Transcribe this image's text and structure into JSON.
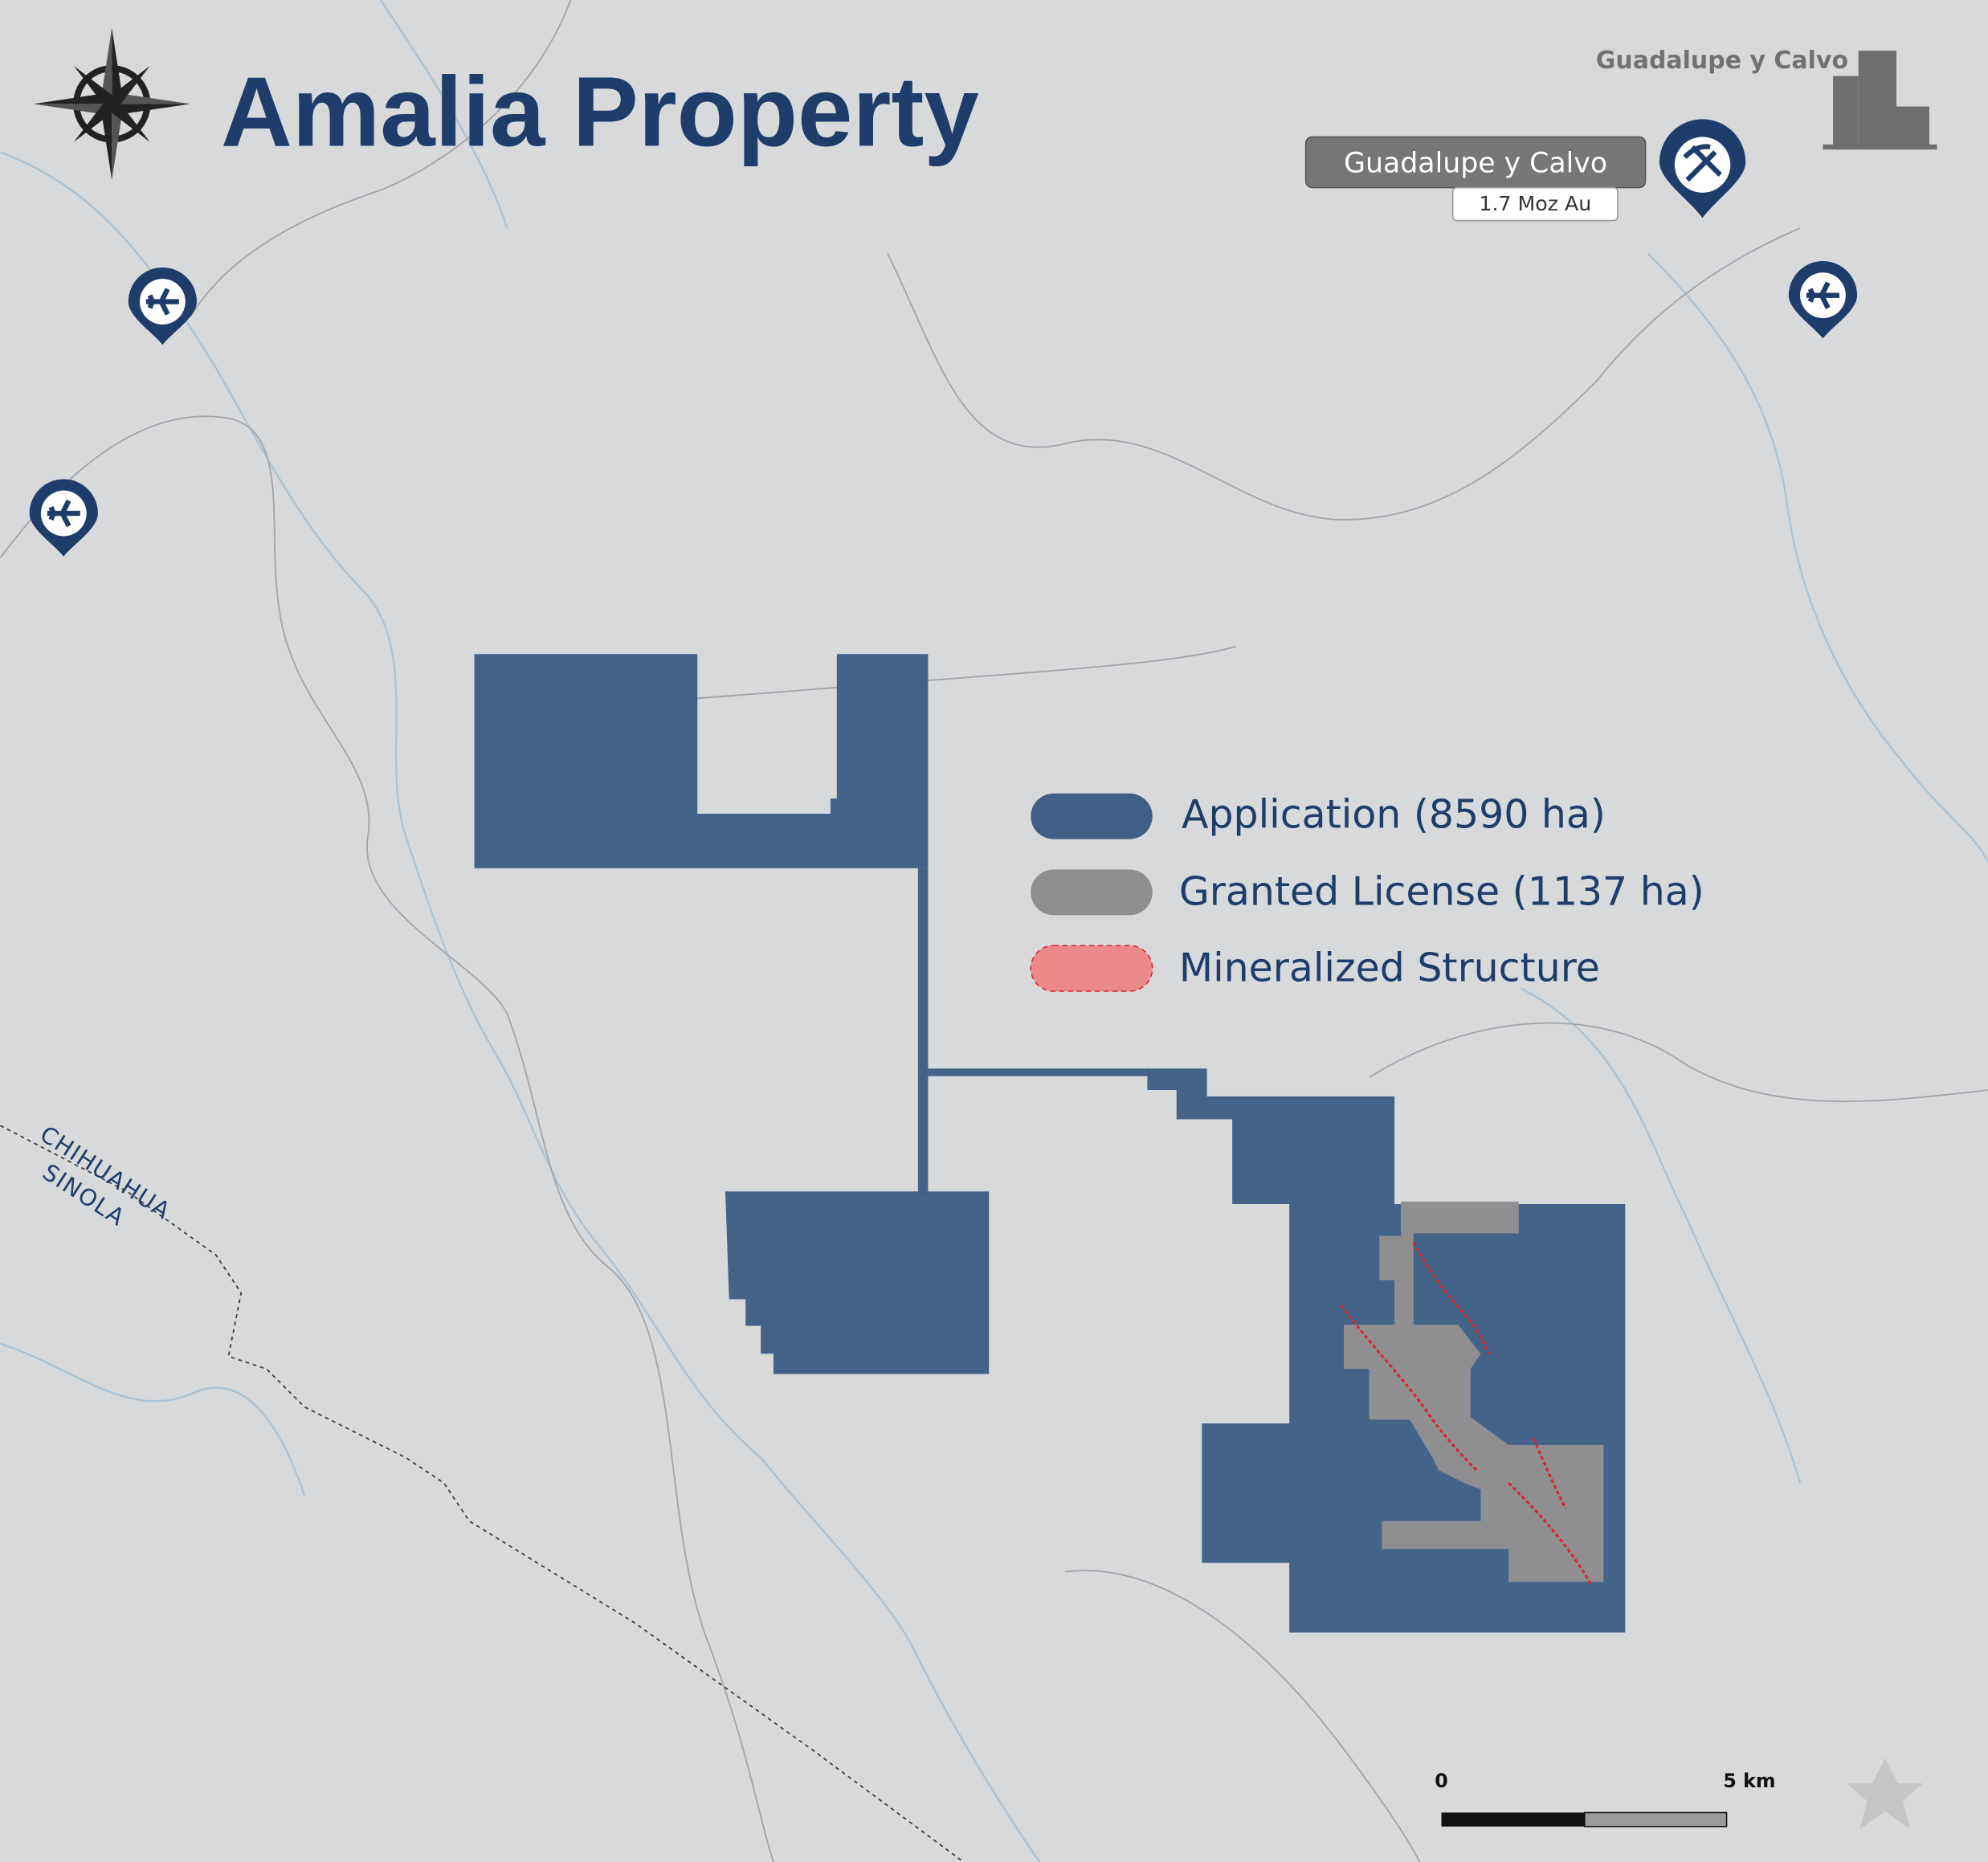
{
  "title": "Amalia Property",
  "city_label": "Guadalupe y Calvo",
  "mine": {
    "name": "Guadalupe y Calvo",
    "resource": "1.7 Moz Au"
  },
  "legend": [
    "Application (8590 ha)",
    "Granted License (1137 ha)",
    "Mineralized Structure"
  ],
  "state_labels": [
    "CHIHUAHUA",
    "SINOLA"
  ],
  "scale_bar": {
    "start": "0",
    "end": "5 km"
  }
}
